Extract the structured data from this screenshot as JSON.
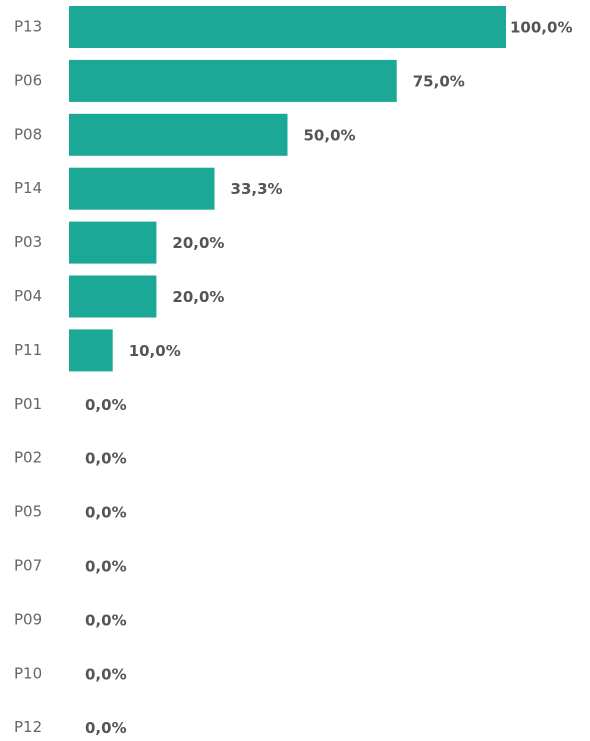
{
  "chart_data": {
    "type": "bar",
    "orientation": "horizontal",
    "categories": [
      "P13",
      "P06",
      "P08",
      "P14",
      "P03",
      "P04",
      "P11",
      "P01",
      "P02",
      "P05",
      "P07",
      "P09",
      "P10",
      "P12"
    ],
    "values": [
      100,
      75,
      50,
      33.3,
      20,
      20,
      10,
      0,
      0,
      0,
      0,
      0,
      0,
      0
    ],
    "value_labels": [
      "100,0%",
      "75,0%",
      "50,0%",
      "33,3%",
      "20,0%",
      "20,0%",
      "10,0%",
      "0,0%",
      "0,0%",
      "0,0%",
      "0,0%",
      "0,0%",
      "0,0%",
      "0,0%"
    ],
    "color": "#1ba897",
    "xlim": [
      0,
      100
    ]
  }
}
